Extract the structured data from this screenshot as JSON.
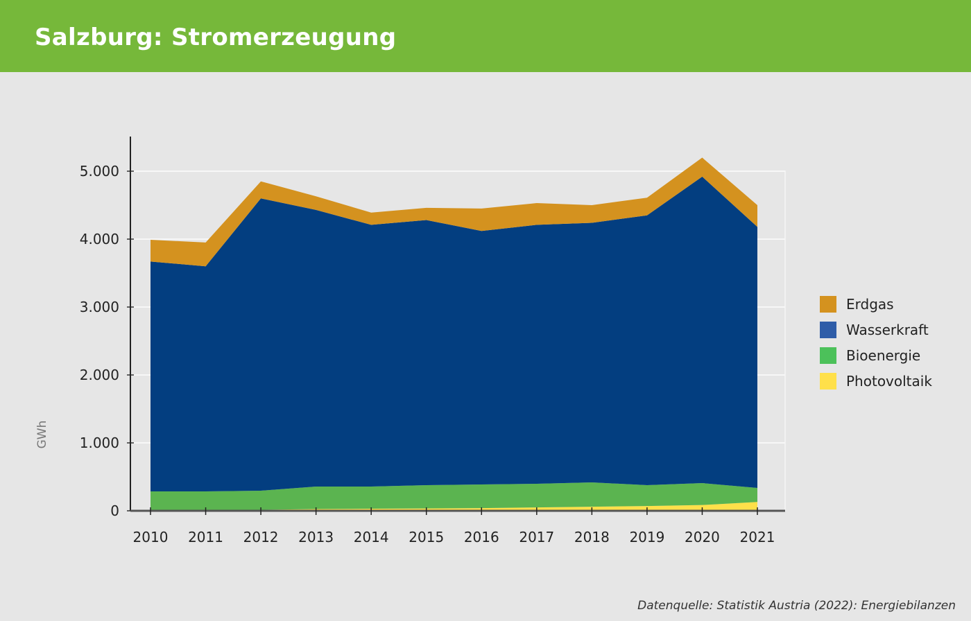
{
  "header": {
    "title": "Salzburg: Stromerzeugung"
  },
  "source": "Datenquelle: Statistik Austria (2022): Energiebilanzen",
  "colors": {
    "header": "#76b83a",
    "Erdgas": "#d4921f",
    "Wasserkraft": "#033e80",
    "Bioenergie": "#5bb450",
    "Photovoltaik": "#ffe04a"
  },
  "legend": [
    {
      "label": "Erdgas",
      "color": "#d4921f"
    },
    {
      "label": "Wasserkraft",
      "color": "#2f5da8"
    },
    {
      "label": "Bioenergie",
      "color": "#4cc15a"
    },
    {
      "label": "Photovoltaik",
      "color": "#ffe04a"
    }
  ],
  "chart_data": {
    "type": "area",
    "stacked": true,
    "title": "Salzburg: Stromerzeugung",
    "xlabel": "",
    "ylabel": "GWh",
    "ylim": [
      0,
      5500
    ],
    "yticks": [
      0,
      1000,
      2000,
      3000,
      4000,
      5000
    ],
    "ytick_labels": [
      "0",
      "1.000",
      "2.000",
      "3.000",
      "4.000",
      "5.000"
    ],
    "grid": true,
    "legend_position": "right",
    "x": [
      "2010",
      "2011",
      "2012",
      "2013",
      "2014",
      "2015",
      "2016",
      "2017",
      "2018",
      "2019",
      "2020",
      "2021"
    ],
    "series": [
      {
        "name": "Photovoltaik",
        "values": [
          2,
          5,
          15,
          25,
          30,
          35,
          40,
          50,
          60,
          70,
          85,
          130
        ]
      },
      {
        "name": "Bioenergie",
        "values": [
          284,
          281,
          281,
          332,
          327,
          343,
          348,
          348,
          358,
          308,
          323,
          207
        ]
      },
      {
        "name": "Wasserkraft",
        "values": [
          3384,
          3314,
          4304,
          4073,
          3853,
          3902,
          3732,
          3812,
          3822,
          3972,
          4512,
          3843
        ]
      },
      {
        "name": "Erdgas",
        "values": [
          320,
          350,
          250,
          200,
          180,
          180,
          330,
          320,
          260,
          260,
          280,
          320
        ]
      }
    ]
  }
}
